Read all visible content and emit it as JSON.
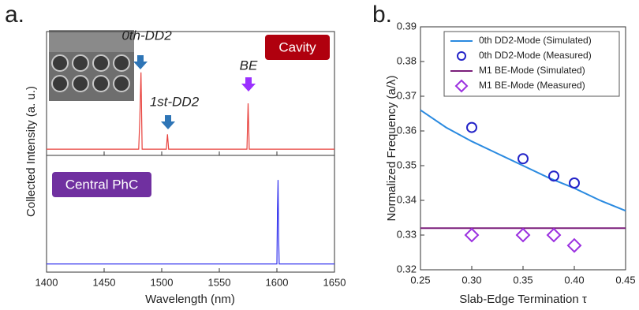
{
  "chart_data": [
    {
      "type": "line",
      "panel_label": "a.",
      "tag": "Cavity",
      "tag_color": "#b0000e",
      "ylabel": "Collected Intensity (a. u.)",
      "xlim": [
        1400,
        1650
      ],
      "ylim": [
        0,
        1
      ],
      "color": "#e8413c",
      "x": [
        1400,
        1480,
        1481,
        1482,
        1483,
        1504,
        1505,
        1506,
        1574,
        1575,
        1576,
        1650
      ],
      "values": [
        0.05,
        0.05,
        0.3,
        0.67,
        0.05,
        0.05,
        0.17,
        0.05,
        0.05,
        0.42,
        0.05,
        0.05
      ],
      "annotations": [
        "0th-DD2",
        "1st-DD2",
        "BE"
      ]
    },
    {
      "type": "line",
      "tag": "Central PhC",
      "tag_color": "#7030a0",
      "xlabel": "Wavelength (nm)",
      "xlim": [
        1400,
        1650
      ],
      "xticks": [
        1400,
        1450,
        1500,
        1550,
        1600,
        1650
      ],
      "ylim": [
        0,
        1
      ],
      "color": "#3434ee",
      "x": [
        1400,
        1600,
        1600.5,
        1601,
        1601.5,
        1602,
        1650
      ],
      "values": [
        0.07,
        0.07,
        0.54,
        0.79,
        0.3,
        0.07,
        0.07
      ]
    },
    {
      "type": "scatter",
      "panel_label": "b.",
      "xlabel": "Slab-Edge Termination τ",
      "ylabel": "Normalized Frequency (a/λ)",
      "xlim": [
        0.25,
        0.45
      ],
      "ylim": [
        0.32,
        0.39
      ],
      "xticks": [
        0.25,
        {
          "value": 0.3,
          "label": "0.30"
        },
        0.35,
        {
          "value": 0.4,
          "label": "0.40"
        },
        0.45
      ],
      "yticks": [
        0.32,
        0.33,
        0.34,
        0.35,
        0.36,
        0.37,
        0.38,
        0.39
      ],
      "legend": "upper right",
      "series": [
        {
          "name": "0th DD2-Mode (Simulated)",
          "color": "#2a8ae0",
          "marker": "line",
          "x": [
            0.25,
            0.275,
            0.3,
            0.325,
            0.35,
            0.375,
            0.4,
            0.425,
            0.45
          ],
          "values": [
            0.366,
            0.361,
            0.357,
            0.3535,
            0.35,
            0.3465,
            0.3435,
            0.34,
            0.337
          ]
        },
        {
          "name": "0th DD2-Mode (Measured)",
          "color": "#2323c8",
          "marker": "circle",
          "x": [
            0.3,
            0.35,
            0.38,
            0.4
          ],
          "values": [
            0.361,
            0.352,
            0.347,
            0.345
          ]
        },
        {
          "name": "M1 BE-Mode (Simulated)",
          "color": "#7b1f7b",
          "marker": "line",
          "x": [
            0.25,
            0.45
          ],
          "values": [
            0.332,
            0.332
          ]
        },
        {
          "name": "M1 BE-Mode (Measured)",
          "color": "#9b30e0",
          "marker": "diamond",
          "x": [
            0.3,
            0.35,
            0.38,
            0.4
          ],
          "values": [
            0.33,
            0.33,
            0.33,
            0.327
          ]
        }
      ]
    }
  ]
}
